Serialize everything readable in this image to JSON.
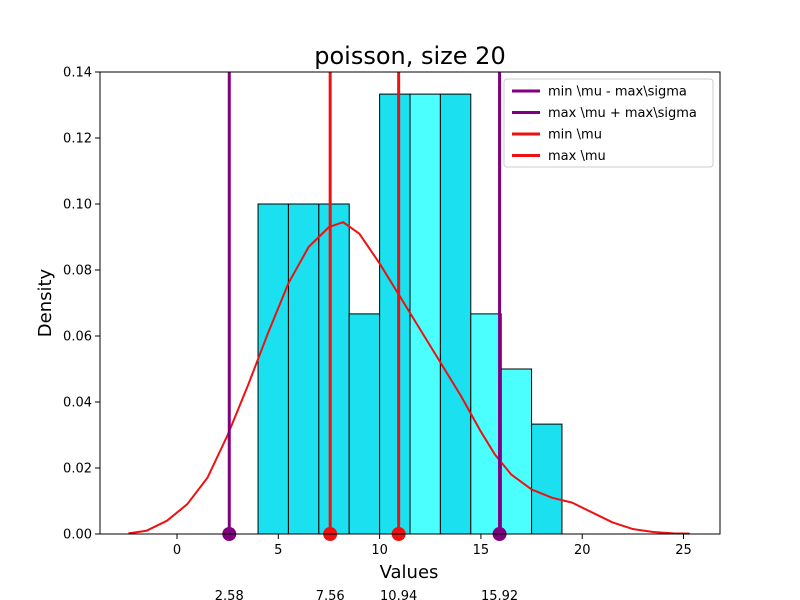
{
  "chart_data": {
    "type": "bar",
    "title": "poisson, size 20",
    "xlabel": "Values",
    "ylabel": "Density",
    "xlim": [
      -3.8,
      26.8
    ],
    "ylim": [
      0,
      0.14
    ],
    "xticks": [
      "0",
      "5",
      "10",
      "15",
      "20",
      "25"
    ],
    "yticks": [
      "0.00",
      "0.02",
      "0.04",
      "0.06",
      "0.08",
      "0.10",
      "0.12",
      "0.14"
    ],
    "histogram": {
      "bins": [
        {
          "x0": 4.0,
          "x1": 5.5,
          "density": 0.1,
          "color": "#1BE0F0"
        },
        {
          "x0": 5.5,
          "x1": 7.0,
          "density": 0.1,
          "color": "#1BE0F0"
        },
        {
          "x0": 7.0,
          "x1": 8.5,
          "density": 0.1,
          "color": "#1BE0F0"
        },
        {
          "x0": 8.5,
          "x1": 10.0,
          "density": 0.0667,
          "color": "#1BE0F0"
        },
        {
          "x0": 10.0,
          "x1": 11.5,
          "density": 0.1333,
          "color": "#1BE0F0"
        },
        {
          "x0": 11.5,
          "x1": 13.0,
          "density": 0.1333,
          "color": "#4CFFFF"
        },
        {
          "x0": 13.0,
          "x1": 14.5,
          "density": 0.1333,
          "color": "#1BE0F0"
        },
        {
          "x0": 14.5,
          "x1": 16.0,
          "density": 0.0667,
          "color": "#4CFFFF"
        },
        {
          "x0": 16.0,
          "x1": 17.5,
          "density": 0.05,
          "color": "#4CFFFF"
        },
        {
          "x0": 17.5,
          "x1": 19.0,
          "density": 0.0333,
          "color": "#1BE0F0"
        }
      ]
    },
    "kde": {
      "color": "#EE1111",
      "x": [
        -2.4,
        -1.5,
        -0.5,
        0.5,
        1.5,
        2.5,
        3.5,
        4.5,
        5.5,
        6.5,
        7.5,
        8.2,
        9.0,
        10.0,
        11.0,
        12.0,
        13.0,
        14.0,
        15.0,
        15.7,
        16.5,
        17.5,
        18.5,
        19.5,
        20.5,
        21.5,
        22.5,
        23.5,
        24.5,
        25.3
      ],
      "y": [
        0.0002,
        0.001,
        0.004,
        0.009,
        0.017,
        0.03,
        0.045,
        0.061,
        0.076,
        0.087,
        0.093,
        0.0945,
        0.091,
        0.082,
        0.072,
        0.062,
        0.052,
        0.042,
        0.031,
        0.024,
        0.018,
        0.0135,
        0.011,
        0.0095,
        0.0065,
        0.0035,
        0.0015,
        0.0006,
        0.0002,
        0.0001
      ]
    },
    "vlines": [
      {
        "name": "min \\mu - max\\sigma",
        "x": 2.58,
        "color": "#800080",
        "label": "2.58"
      },
      {
        "name": "max \\mu + max\\sigma",
        "x": 15.92,
        "color": "#800080",
        "label": "15.92"
      },
      {
        "name": "min \\mu",
        "x": 7.56,
        "color": "#EE1111",
        "label": "7.56"
      },
      {
        "name": "max \\mu",
        "x": 10.94,
        "color": "#EE1111",
        "label": "10.94"
      }
    ],
    "legend_position": "top-right",
    "grid": false
  }
}
